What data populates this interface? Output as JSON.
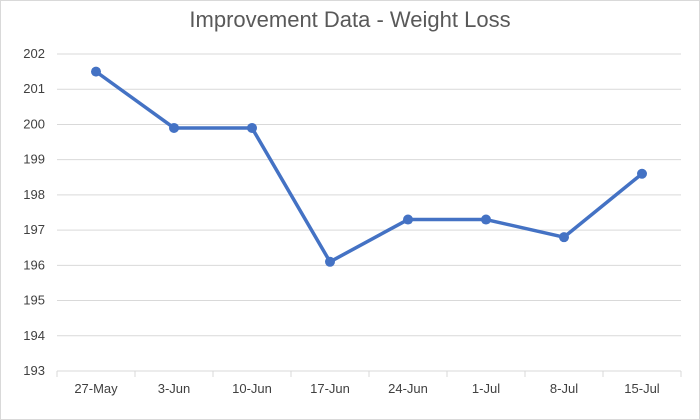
{
  "chart_data": {
    "type": "line",
    "title": "Improvement Data - Weight Loss",
    "xlabel": "",
    "ylabel": "",
    "categories": [
      "27-May",
      "3-Jun",
      "10-Jun",
      "17-Jun",
      "24-Jun",
      "1-Jul",
      "8-Jul",
      "15-Jul"
    ],
    "series": [
      {
        "values": [
          201.5,
          199.9,
          199.9,
          196.1,
          197.3,
          197.3,
          196.8,
          198.6
        ],
        "color": "#4472c4"
      }
    ],
    "ylim": [
      193,
      202
    ],
    "yticks": [
      "193",
      "194",
      "195",
      "196",
      "197",
      "198",
      "199",
      "200",
      "201",
      "202"
    ],
    "grid": true,
    "gridColor": "#d9d9d9",
    "legend": "none"
  }
}
